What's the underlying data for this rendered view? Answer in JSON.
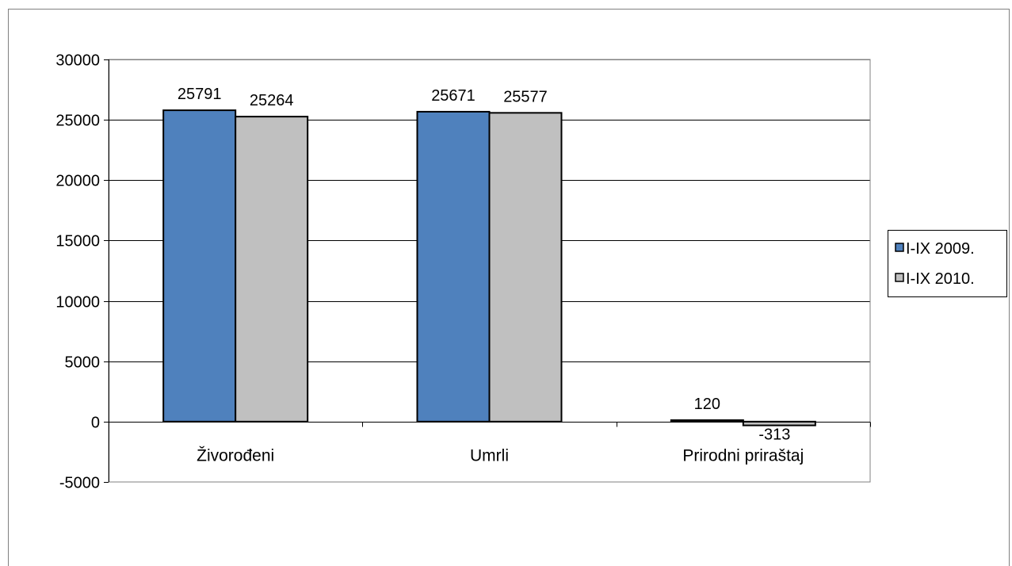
{
  "chart_data": {
    "type": "bar",
    "categories": [
      "Živorođeni",
      "Umrli",
      "Prirodni priraštaj"
    ],
    "series": [
      {
        "name": "I-IX 2009.",
        "values": [
          25791,
          25671,
          120
        ],
        "color": "#4f81bd"
      },
      {
        "name": "I-IX 2010.",
        "values": [
          25264,
          25577,
          -313
        ],
        "color": "#c0c0c0"
      }
    ],
    "ylim": [
      -5000,
      30000
    ],
    "yticks": [
      30000,
      25000,
      20000,
      15000,
      10000,
      5000,
      0,
      -5000
    ],
    "grid": true,
    "legend_position": "right",
    "title": "",
    "xlabel": "",
    "ylabel": ""
  }
}
